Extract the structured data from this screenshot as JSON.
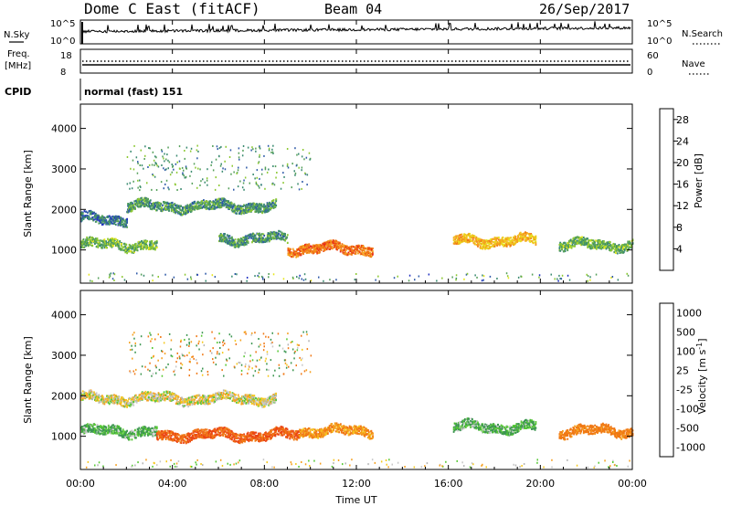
{
  "header": {
    "station": "Dome C East (fitACF)",
    "beam": "Beam 04",
    "date": "26/Sep/2017"
  },
  "strips": {
    "nsky": {
      "label": "N.Sky",
      "tick_top": "10^5",
      "tick_bottom": "10^0",
      "right_label": "N.Search",
      "right_tick_top": "10^5",
      "right_tick_bottom": "10^0"
    },
    "freq": {
      "label_line1": "Freq.",
      "label_line2": "[MHz]",
      "tick_top": "18",
      "tick_bottom": "8",
      "right_label": "Nave",
      "right_tick_top": "60",
      "right_tick_bottom": "0"
    },
    "cpid": {
      "label": "CPID",
      "mode": "normal (fast) 151"
    }
  },
  "colors": {
    "power_scale": [
      "#1a1aff",
      "#2030c0",
      "#2e5aa8",
      "#3a8a70",
      "#55a05a",
      "#8cc832",
      "#e6e61e",
      "#f0c81e",
      "#f5a01e",
      "#f07814",
      "#eb4614",
      "#e61e1e"
    ],
    "velocity_scale": [
      "#e61e1e",
      "#eb4614",
      "#f07814",
      "#f5a01e",
      "#f5c81e",
      "#b4b4b4",
      "#c8c8c8",
      "#55c832",
      "#3c9650",
      "#2e6e8c",
      "#2840b4"
    ]
  },
  "chart_data": [
    {
      "type": "heatmap",
      "name": "Power",
      "xlabel": "",
      "ylabel": "Slant Range [km]",
      "x_ticks": [
        "00:00",
        "04:00",
        "08:00",
        "12:00",
        "16:00",
        "20:00",
        "00:00"
      ],
      "xlim_hours": [
        0,
        24
      ],
      "ylim_km": [
        180,
        4600
      ],
      "y_ticks": [
        1000,
        2000,
        3000,
        4000
      ],
      "colorbar": {
        "label": "Power [dB]",
        "ticks": [
          4,
          8,
          12,
          16,
          20,
          24,
          28
        ],
        "range": [
          0,
          30
        ]
      },
      "echo_bands": [
        {
          "t_start": 0.0,
          "t_end": 3.3,
          "range_km": 1150,
          "power_db": 12
        },
        {
          "t_start": 0.0,
          "t_end": 2.0,
          "range_km": 1780,
          "power_db": 8
        },
        {
          "t_start": 2.0,
          "t_end": 8.5,
          "range_km": 2100,
          "power_db": 10
        },
        {
          "t_start": 6.0,
          "t_end": 9.0,
          "range_km": 1300,
          "power_db": 10
        },
        {
          "t_start": 9.0,
          "t_end": 12.7,
          "range_km": 1050,
          "power_db": 24
        },
        {
          "t_start": 16.2,
          "t_end": 19.8,
          "range_km": 1250,
          "power_db": 20
        },
        {
          "t_start": 20.8,
          "t_end": 24.0,
          "range_km": 1150,
          "power_db": 12
        }
      ]
    },
    {
      "type": "heatmap",
      "name": "Velocity",
      "xlabel": "Time UT",
      "ylabel": "Slant Range [km]",
      "x_ticks": [
        "00:00",
        "04:00",
        "08:00",
        "12:00",
        "16:00",
        "20:00",
        "00:00"
      ],
      "xlim_hours": [
        0,
        24
      ],
      "ylim_km": [
        180,
        4600
      ],
      "y_ticks": [
        1000,
        2000,
        3000,
        4000
      ],
      "colorbar": {
        "label": "Velocity [m s^-1]",
        "ticks": [
          "1000",
          "500",
          "100",
          "25",
          "-25",
          "-100",
          "-500",
          "-1000"
        ]
      },
      "echo_bands": [
        {
          "t_start": 0.0,
          "t_end": 3.3,
          "range_km": 1150,
          "velocity": 100
        },
        {
          "t_start": 0.0,
          "t_end": 8.5,
          "range_km": 1950,
          "velocity": 0
        },
        {
          "t_start": 3.3,
          "t_end": 9.5,
          "range_km": 1050,
          "velocity": -300
        },
        {
          "t_start": 9.5,
          "t_end": 12.7,
          "range_km": 1150,
          "velocity": -100
        },
        {
          "t_start": 16.2,
          "t_end": 19.8,
          "range_km": 1250,
          "velocity": 100
        },
        {
          "t_start": 20.8,
          "t_end": 24.0,
          "range_km": 1150,
          "velocity": -150
        }
      ]
    }
  ]
}
